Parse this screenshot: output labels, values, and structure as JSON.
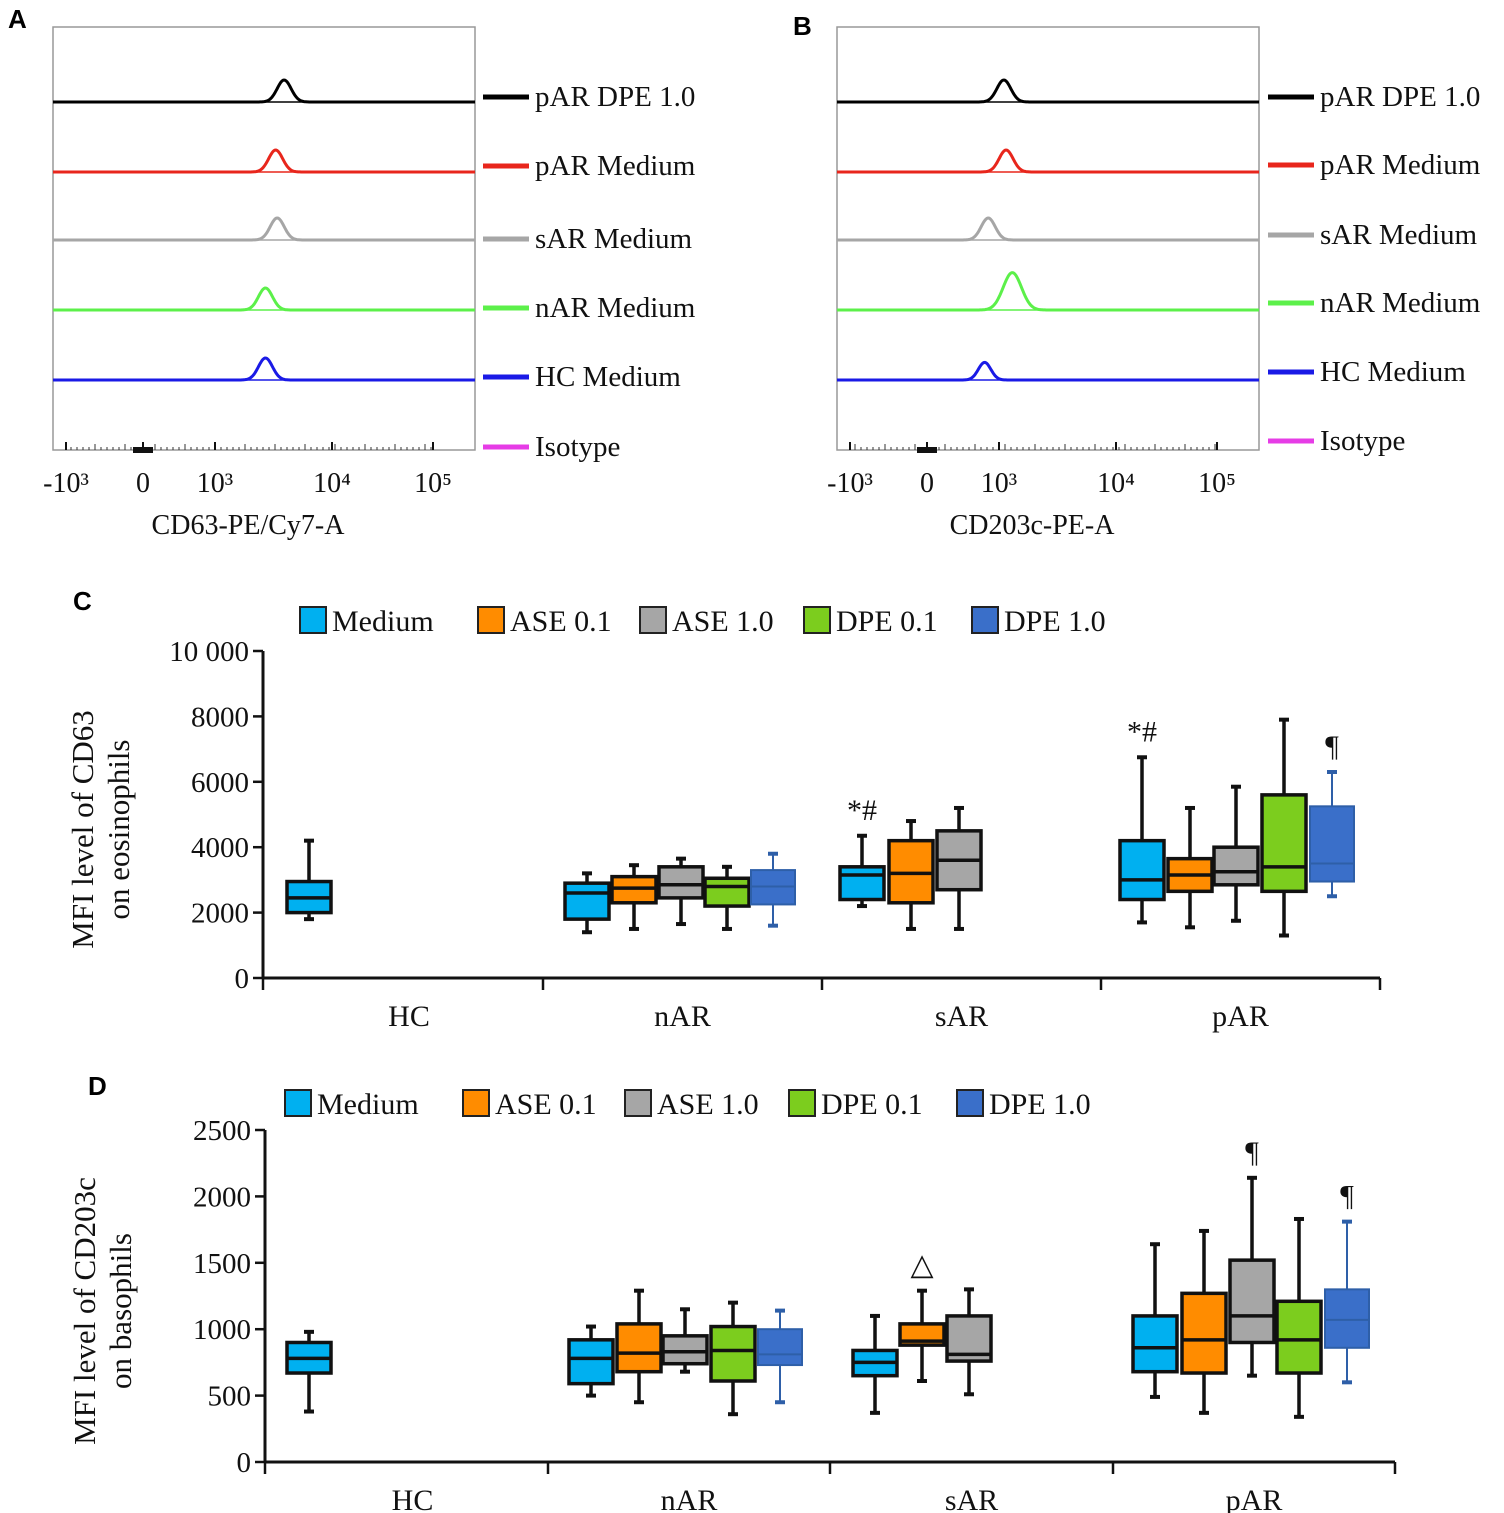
{
  "chart_data": [
    {
      "panel": "A",
      "type": "histogram-overlay",
      "xlabel": "CD63-PE/Cy7-A",
      "xscale": "biexponential",
      "xticks": [
        "-10³",
        "0",
        "10³",
        "10⁴",
        "10⁵"
      ],
      "series": [
        {
          "name": "pAR DPE 1.0",
          "color": "#000000",
          "peak": 3900,
          "relative_height": 1
        },
        {
          "name": "pAR Medium",
          "color": "#e8261c",
          "peak": 3300,
          "relative_height": 1
        },
        {
          "name": "sAR Medium",
          "color": "#a6a6a6",
          "peak": 3400,
          "relative_height": 1
        },
        {
          "name": "nAR Medium",
          "color": "#5cf04a",
          "peak": 2700,
          "relative_height": 1
        },
        {
          "name": "HC Medium",
          "color": "#1a1ae6",
          "peak": 2700,
          "relative_height": 1
        },
        {
          "name": "Isotype",
          "color": "#e63ce6",
          "peak": null
        }
      ]
    },
    {
      "panel": "B",
      "type": "histogram-overlay",
      "xlabel": "CD203c-PE-A",
      "xscale": "biexponential",
      "xticks": [
        "-10³",
        "0",
        "10³",
        "10⁴",
        "10⁵"
      ],
      "series": [
        {
          "name": "pAR DPE 1.0",
          "color": "#000000",
          "peak": 1100,
          "relative_height": 1
        },
        {
          "name": "pAR Medium",
          "color": "#e8261c",
          "peak": 1150,
          "relative_height": 1
        },
        {
          "name": "sAR Medium",
          "color": "#a6a6a6",
          "peak": 850,
          "relative_height": 1
        },
        {
          "name": "nAR Medium",
          "color": "#5cf04a",
          "peak": 1300,
          "relative_height": 1.7
        },
        {
          "name": "HC Medium",
          "color": "#1a1ae6",
          "peak": 800,
          "relative_height": 0.8
        },
        {
          "name": "Isotype",
          "color": "#e63ce6",
          "peak": null
        }
      ]
    },
    {
      "panel": "C",
      "type": "boxplot",
      "ylabel": [
        "MFI level of CD63",
        "on eosinophils"
      ],
      "ylim": [
        0,
        10000
      ],
      "yticks": [
        "0",
        "2000",
        "4000",
        "6000",
        "8000",
        "10 000"
      ],
      "ytick_values": [
        0,
        2000,
        4000,
        6000,
        8000,
        10000
      ],
      "categories": [
        "HC",
        "nAR",
        "sAR",
        "pAR"
      ],
      "legend": [
        {
          "name": "Medium",
          "color": "#00b0f0"
        },
        {
          "name": "ASE 0.1",
          "color": "#ff8c00"
        },
        {
          "name": "ASE 1.0",
          "color": "#a6a6a6"
        },
        {
          "name": "DPE 0.1",
          "color": "#7ccd1e"
        },
        {
          "name": "DPE 1.0",
          "color": "#3a6fc9"
        }
      ],
      "boxes": [
        {
          "group": "HC",
          "series": "Medium",
          "min": 1800,
          "q1": 2000,
          "median": 2450,
          "q3": 2950,
          "max": 4200
        },
        {
          "group": "nAR",
          "series": "Medium",
          "min": 1400,
          "q1": 1800,
          "median": 2600,
          "q3": 2900,
          "max": 3200
        },
        {
          "group": "nAR",
          "series": "ASE 0.1",
          "min": 1500,
          "q1": 2300,
          "median": 2750,
          "q3": 3100,
          "max": 3450
        },
        {
          "group": "nAR",
          "series": "ASE 1.0",
          "min": 1650,
          "q1": 2450,
          "median": 2850,
          "q3": 3400,
          "max": 3650
        },
        {
          "group": "nAR",
          "series": "DPE 0.1",
          "min": 1500,
          "q1": 2200,
          "median": 2800,
          "q3": 3050,
          "max": 3400
        },
        {
          "group": "nAR",
          "series": "DPE 1.0",
          "min": 1600,
          "q1": 2250,
          "median": 2800,
          "q3": 3300,
          "max": 3800
        },
        {
          "group": "sAR",
          "series": "Medium",
          "min": 2200,
          "q1": 2400,
          "median": 3150,
          "q3": 3400,
          "max": 4350,
          "annotation": "*#"
        },
        {
          "group": "sAR",
          "series": "ASE 0.1",
          "min": 1500,
          "q1": 2300,
          "median": 3200,
          "q3": 4200,
          "max": 4800
        },
        {
          "group": "sAR",
          "series": "ASE 1.0",
          "min": 1500,
          "q1": 2700,
          "median": 3600,
          "q3": 4500,
          "max": 5200
        },
        {
          "group": "pAR",
          "series": "Medium",
          "min": 1700,
          "q1": 2400,
          "median": 3000,
          "q3": 4200,
          "max": 6750,
          "annotation": "*#"
        },
        {
          "group": "pAR",
          "series": "ASE 0.1",
          "min": 1550,
          "q1": 2650,
          "median": 3150,
          "q3": 3650,
          "max": 5200
        },
        {
          "group": "pAR",
          "series": "ASE 1.0",
          "min": 1750,
          "q1": 2850,
          "median": 3250,
          "q3": 4000,
          "max": 5850
        },
        {
          "group": "pAR",
          "series": "DPE 0.1",
          "min": 1300,
          "q1": 2650,
          "median": 3400,
          "q3": 5600,
          "max": 7900
        },
        {
          "group": "pAR",
          "series": "DPE 1.0",
          "min": 2500,
          "q1": 2950,
          "median": 3500,
          "q3": 5250,
          "max": 6300,
          "annotation": "¶"
        }
      ]
    },
    {
      "panel": "D",
      "type": "boxplot",
      "ylabel": [
        "MFI level of CD203c",
        "on basophils"
      ],
      "ylim": [
        0,
        2500
      ],
      "yticks": [
        "0",
        "500",
        "1000",
        "1500",
        "2000",
        "2500"
      ],
      "ytick_values": [
        0,
        500,
        1000,
        1500,
        2000,
        2500
      ],
      "categories": [
        "HC",
        "nAR",
        "sAR",
        "pAR"
      ],
      "legend": [
        {
          "name": "Medium",
          "color": "#00b0f0"
        },
        {
          "name": "ASE 0.1",
          "color": "#ff8c00"
        },
        {
          "name": "ASE 1.0",
          "color": "#a6a6a6"
        },
        {
          "name": "DPE 0.1",
          "color": "#7ccd1e"
        },
        {
          "name": "DPE 1.0",
          "color": "#3a6fc9"
        }
      ],
      "boxes": [
        {
          "group": "HC",
          "series": "Medium",
          "min": 380,
          "q1": 670,
          "median": 780,
          "q3": 900,
          "max": 980
        },
        {
          "group": "nAR",
          "series": "Medium",
          "min": 500,
          "q1": 590,
          "median": 780,
          "q3": 920,
          "max": 1020
        },
        {
          "group": "nAR",
          "series": "ASE 0.1",
          "min": 450,
          "q1": 680,
          "median": 820,
          "q3": 1040,
          "max": 1290
        },
        {
          "group": "nAR",
          "series": "ASE 1.0",
          "min": 680,
          "q1": 740,
          "median": 830,
          "q3": 950,
          "max": 1150
        },
        {
          "group": "nAR",
          "series": "DPE 0.1",
          "min": 360,
          "q1": 610,
          "median": 840,
          "q3": 1020,
          "max": 1200
        },
        {
          "group": "nAR",
          "series": "DPE 1.0",
          "min": 450,
          "q1": 730,
          "median": 810,
          "q3": 1000,
          "max": 1140
        },
        {
          "group": "sAR",
          "series": "Medium",
          "min": 370,
          "q1": 650,
          "median": 750,
          "q3": 840,
          "max": 1100
        },
        {
          "group": "sAR",
          "series": "ASE 0.1",
          "min": 610,
          "q1": 880,
          "median": 910,
          "q3": 1040,
          "max": 1290,
          "annotation": "△"
        },
        {
          "group": "sAR",
          "series": "ASE 1.0",
          "min": 510,
          "q1": 760,
          "median": 810,
          "q3": 1100,
          "max": 1300
        },
        {
          "group": "pAR",
          "series": "Medium",
          "min": 490,
          "q1": 680,
          "median": 860,
          "q3": 1100,
          "max": 1640
        },
        {
          "group": "pAR",
          "series": "ASE 0.1",
          "min": 370,
          "q1": 670,
          "median": 920,
          "q3": 1270,
          "max": 1740
        },
        {
          "group": "pAR",
          "series": "ASE 1.0",
          "min": 650,
          "q1": 900,
          "median": 1100,
          "q3": 1520,
          "max": 2140,
          "annotation": "¶"
        },
        {
          "group": "pAR",
          "series": "DPE 0.1",
          "min": 340,
          "q1": 670,
          "median": 920,
          "q3": 1210,
          "max": 1830
        },
        {
          "group": "pAR",
          "series": "DPE 1.0",
          "min": 600,
          "q1": 860,
          "median": 1070,
          "q3": 1300,
          "max": 1810,
          "annotation": "¶"
        }
      ]
    }
  ]
}
